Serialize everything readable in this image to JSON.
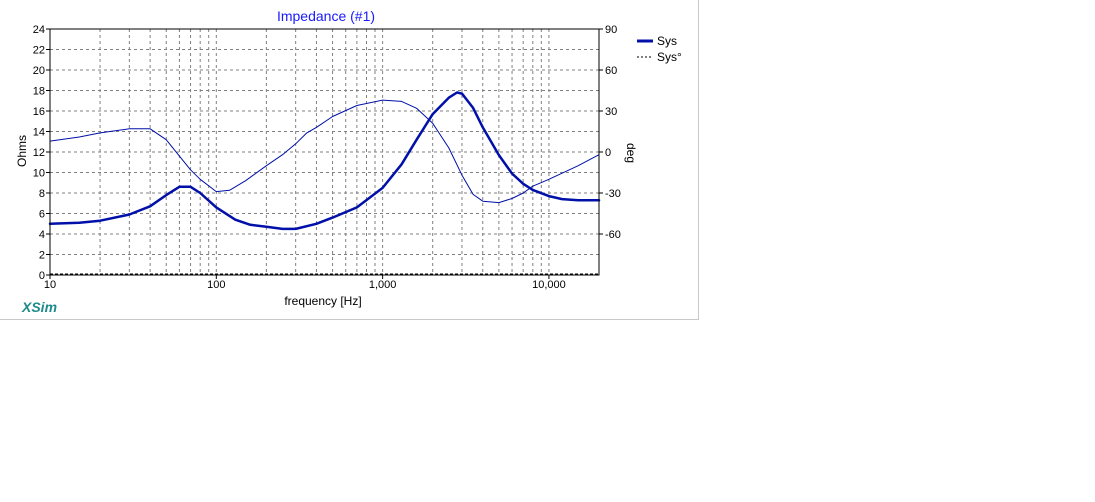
{
  "chart_data": {
    "type": "line",
    "title": "Impedance (#1)",
    "xlabel": "frequency [Hz]",
    "ylabel": "Ohms",
    "y2label": "deg",
    "xscale": "log",
    "xlim": [
      10,
      20000
    ],
    "ylim": [
      0,
      24
    ],
    "y2lim": [
      -90,
      90
    ],
    "x_tick_values": [
      10,
      100,
      1000,
      10000
    ],
    "x_tick_labels": [
      "10",
      "100",
      "1,000",
      "10,000"
    ],
    "y_ticks": [
      0,
      2,
      4,
      6,
      8,
      10,
      12,
      14,
      16,
      18,
      20,
      22,
      24
    ],
    "y2_tick_values": [
      90,
      60,
      30,
      0,
      -30,
      -60
    ],
    "y2_tick_labels": [
      "90",
      "60",
      "30",
      "0",
      "-30",
      "-60"
    ],
    "grid": true,
    "legend_position": "top-right",
    "colors": {
      "title": "#1a1aff",
      "series": "#0010a8",
      "brand": "#1f8a8a",
      "grid": "#808080"
    },
    "series": [
      {
        "name": "Sys",
        "axis": "left",
        "style": "solid-thick",
        "x": [
          10,
          15,
          20,
          30,
          40,
          50,
          60,
          70,
          80,
          100,
          130,
          160,
          200,
          250,
          300,
          400,
          500,
          700,
          1000,
          1300,
          1600,
          2000,
          2500,
          2800,
          3000,
          3500,
          4000,
          5000,
          6000,
          7000,
          8000,
          10000,
          12000,
          15000,
          20000
        ],
        "y": [
          5.0,
          5.1,
          5.3,
          5.9,
          6.7,
          7.8,
          8.6,
          8.6,
          8.0,
          6.6,
          5.4,
          4.9,
          4.7,
          4.5,
          4.5,
          5.0,
          5.6,
          6.6,
          8.5,
          10.8,
          13.2,
          15.7,
          17.3,
          17.8,
          17.7,
          16.3,
          14.4,
          11.7,
          9.9,
          8.9,
          8.3,
          7.7,
          7.4,
          7.3,
          7.3
        ]
      },
      {
        "name": "Sys°",
        "axis": "right",
        "style": "thin",
        "x": [
          10,
          15,
          20,
          30,
          40,
          50,
          60,
          70,
          80,
          100,
          120,
          150,
          200,
          250,
          300,
          350,
          400,
          500,
          700,
          1000,
          1300,
          1600,
          2000,
          2500,
          3000,
          3500,
          4000,
          5000,
          6000,
          7000,
          8000,
          10000,
          15000,
          20000
        ],
        "y": [
          8,
          11,
          14,
          17,
          17,
          9,
          -3,
          -13,
          -20,
          -29,
          -28,
          -21,
          -10,
          -2,
          6,
          14,
          18,
          26,
          34,
          38,
          37,
          32,
          21,
          3,
          -17,
          -31,
          -36,
          -37,
          -34,
          -30,
          -25,
          -20,
          -10,
          -2
        ]
      }
    ]
  },
  "branding": {
    "label": "XSim"
  }
}
